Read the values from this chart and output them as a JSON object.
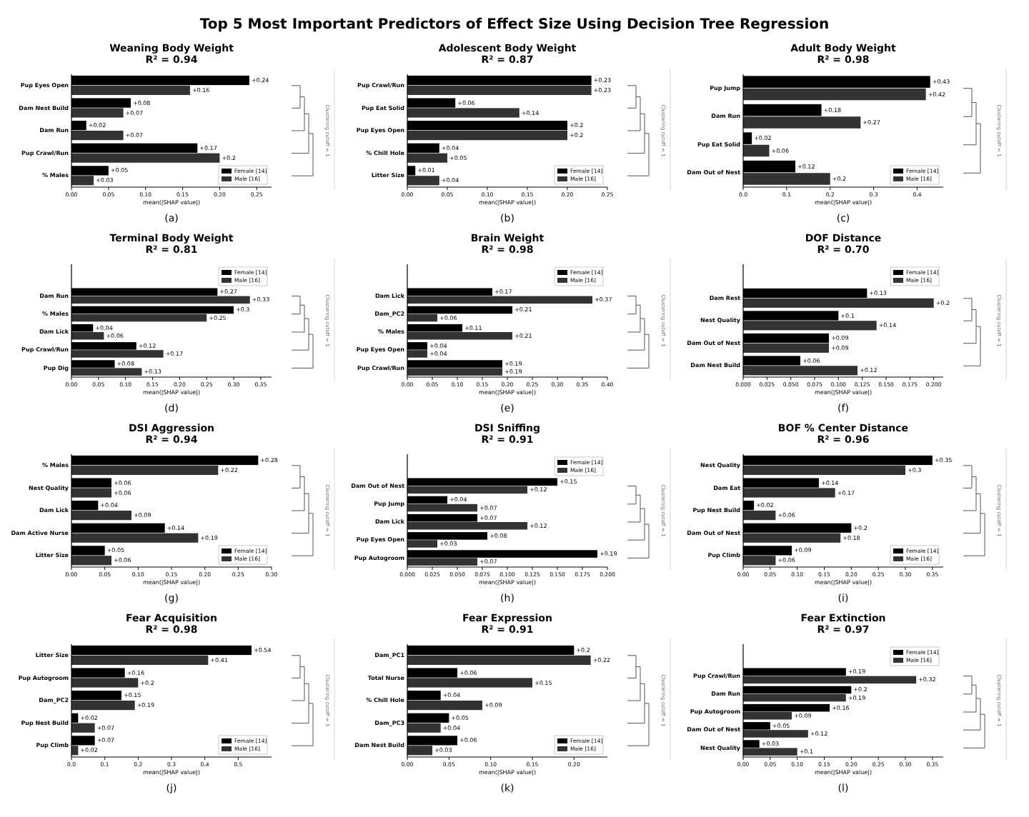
{
  "chart_data": [
    {
      "type": "bar",
      "orientation": "horizontal",
      "title": "Weaning Body Weight",
      "subtitle": "R² = 0.94",
      "xlabel": "mean(|SHAP value|)",
      "categories": [
        "Pup Eyes Open",
        "Dam Nest Build",
        "Dam Run",
        "Pup Crawl/Run",
        "% Males"
      ],
      "series": [
        {
          "name": "Female [14]",
          "color": "#000000",
          "values": [
            0.24,
            0.08,
            0.02,
            0.17,
            0.05
          ],
          "value_labels": [
            "+0.24",
            "+0.08",
            "+0.02",
            "+0.17",
            "+0.05"
          ]
        },
        {
          "name": "Male [16]",
          "color": "#333333",
          "values": [
            0.16,
            0.07,
            0.07,
            0.2,
            0.03
          ],
          "value_labels": [
            "+0.16",
            "+0.07",
            "+0.07",
            "+0.2",
            "+0.03"
          ]
        }
      ],
      "xlim": [
        0,
        0.27
      ],
      "xticks": [
        {
          "value": 0,
          "label": "0.00"
        },
        {
          "value": 0.05,
          "label": "0.05"
        },
        {
          "value": 0.1,
          "label": "0.10"
        },
        {
          "value": 0.15,
          "label": "0.15"
        },
        {
          "value": 0.2,
          "label": "0.20"
        },
        {
          "value": 0.25,
          "label": "0.25"
        }
      ],
      "legend": "bottom right",
      "annotations": [
        "(a)",
        "Clustering cutoff = 1",
        "Top 5 Most Important Predictors of Effect Size Using Decision Tree Regression"
      ]
    },
    {
      "type": "bar",
      "orientation": "horizontal",
      "title": "Adolescent Body Weight",
      "subtitle": "R² = 0.87",
      "xlabel": "mean(|SHAP value|)",
      "categories": [
        "Pup Crawl/Run",
        "Pup Eat Solid",
        "Pup Eyes Open",
        "% Chill Hole",
        "Litter Size"
      ],
      "series": [
        {
          "name": "Female [14]",
          "color": "#000000",
          "values": [
            0.23,
            0.06,
            0.2,
            0.04,
            0.01
          ],
          "value_labels": [
            "+0.23",
            "+0.06",
            "+0.2",
            "+0.04",
            "+0.01"
          ]
        },
        {
          "name": "Male [16]",
          "color": "#333333",
          "values": [
            0.23,
            0.14,
            0.2,
            0.05,
            0.04
          ],
          "value_labels": [
            "+0.23",
            "+0.14",
            "+0.2",
            "+0.05",
            "+0.04"
          ]
        }
      ],
      "xlim": [
        0,
        0.25
      ],
      "xticks": [
        {
          "value": 0,
          "label": "0.00"
        },
        {
          "value": 0.05,
          "label": "0.05"
        },
        {
          "value": 0.1,
          "label": "0.10"
        },
        {
          "value": 0.15,
          "label": "0.15"
        },
        {
          "value": 0.2,
          "label": "0.20"
        },
        {
          "value": 0.25,
          "label": "0.25"
        }
      ],
      "legend": "bottom right",
      "annotations": [
        "(b)",
        "Clustering cutoff = 1"
      ]
    },
    {
      "type": "bar",
      "orientation": "horizontal",
      "title": "Adult Body Weight",
      "subtitle": "R² = 0.98",
      "xlabel": "mean(|SHAP value|)",
      "categories": [
        "Pup Jump",
        "Dam Run",
        "Pup Eat Solid",
        "Dam Out of Nest"
      ],
      "series": [
        {
          "name": "Female [14]",
          "color": "#000000",
          "values": [
            0.43,
            0.18,
            0.02,
            0.12
          ],
          "value_labels": [
            "+0.43",
            "+0.18",
            "+0.02",
            "+0.12"
          ]
        },
        {
          "name": "Male [16]",
          "color": "#333333",
          "values": [
            0.42,
            0.27,
            0.06,
            0.2
          ],
          "value_labels": [
            "+0.42",
            "+0.27",
            "+0.06",
            "+0.2"
          ]
        }
      ],
      "xlim": [
        0,
        0.46
      ],
      "xticks": [
        {
          "value": 0,
          "label": "0.0"
        },
        {
          "value": 0.1,
          "label": "0.1"
        },
        {
          "value": 0.2,
          "label": "0.2"
        },
        {
          "value": 0.3,
          "label": "0.3"
        },
        {
          "value": 0.4,
          "label": "0.4"
        }
      ],
      "legend": "bottom right",
      "annotations": [
        "(c)",
        "Clustering cutoff = 1"
      ]
    },
    {
      "type": "bar",
      "orientation": "horizontal",
      "title": "Terminal Body Weight",
      "subtitle": "R² = 0.81",
      "xlabel": "mean(|SHAP value|)",
      "categories": [
        "Dam Run",
        "% Males",
        "Dam Lick",
        "Pup Crawl/Run",
        "Pup Dig"
      ],
      "series": [
        {
          "name": "Female [14]",
          "color": "#000000",
          "values": [
            0.27,
            0.3,
            0.04,
            0.12,
            0.08
          ],
          "value_labels": [
            "+0.27",
            "+0.3",
            "+0.04",
            "+0.12",
            "+0.08"
          ]
        },
        {
          "name": "Male [16]",
          "color": "#333333",
          "values": [
            0.33,
            0.25,
            0.06,
            0.17,
            0.13
          ],
          "value_labels": [
            "+0.33",
            "+0.25",
            "+0.06",
            "+0.17",
            "+0.13"
          ]
        }
      ],
      "xlim": [
        0,
        0.37
      ],
      "xticks": [
        {
          "value": 0,
          "label": "0.00"
        },
        {
          "value": 0.05,
          "label": "0.05"
        },
        {
          "value": 0.1,
          "label": "0.10"
        },
        {
          "value": 0.15,
          "label": "0.15"
        },
        {
          "value": 0.2,
          "label": "0.20"
        },
        {
          "value": 0.25,
          "label": "0.25"
        },
        {
          "value": 0.3,
          "label": "0.30"
        },
        {
          "value": 0.35,
          "label": "0.35"
        }
      ],
      "legend": "top right",
      "annotations": [
        "(d)",
        "Clustering cutoff = 1"
      ]
    },
    {
      "type": "bar",
      "orientation": "horizontal",
      "title": "Brain Weight",
      "subtitle": "R² = 0.98",
      "xlabel": "mean(|SHAP value|)",
      "categories": [
        "Dam Lick",
        "Dam_PC2",
        "% Males",
        "Pup Eyes Open",
        "Pup Crawl/Run"
      ],
      "series": [
        {
          "name": "Female [14]",
          "color": "#000000",
          "values": [
            0.17,
            0.21,
            0.11,
            0.04,
            0.19
          ],
          "value_labels": [
            "+0.17",
            "+0.21",
            "+0.11",
            "+0.04",
            "+0.19"
          ]
        },
        {
          "name": "Male [16]",
          "color": "#333333",
          "values": [
            0.37,
            0.06,
            0.21,
            0.04,
            0.19
          ],
          "value_labels": [
            "+0.37",
            "+0.06",
            "+0.21",
            "+0.04",
            "+0.19"
          ]
        }
      ],
      "xlim": [
        0,
        0.4
      ],
      "xticks": [
        {
          "value": 0,
          "label": "0.00"
        },
        {
          "value": 0.05,
          "label": "0.05"
        },
        {
          "value": 0.1,
          "label": "0.10"
        },
        {
          "value": 0.15,
          "label": "0.15"
        },
        {
          "value": 0.2,
          "label": "0.20"
        },
        {
          "value": 0.25,
          "label": "0.25"
        },
        {
          "value": 0.3,
          "label": "0.30"
        },
        {
          "value": 0.35,
          "label": "0.35"
        },
        {
          "value": 0.4,
          "label": "0.40"
        }
      ],
      "legend": "top right",
      "annotations": [
        "(e)",
        "Clustering cutoff = 1"
      ]
    },
    {
      "type": "bar",
      "orientation": "horizontal",
      "title": "DOF Distance",
      "subtitle": "R² = 0.70",
      "xlabel": "mean(|SHAP value|)",
      "categories": [
        "Dam Rest",
        "Nest Quality",
        "Dam Out of Nest",
        "Dam Nest Build"
      ],
      "series": [
        {
          "name": "Female [14]",
          "color": "#000000",
          "values": [
            0.13,
            0.1,
            0.09,
            0.06
          ],
          "value_labels": [
            "+0.13",
            "+0.1",
            "+0.09",
            "+0.06"
          ]
        },
        {
          "name": "Male [16]",
          "color": "#333333",
          "values": [
            0.2,
            0.14,
            0.09,
            0.12
          ],
          "value_labels": [
            "+0.2",
            "+0.14",
            "+0.09",
            "+0.12"
          ]
        }
      ],
      "xlim": [
        0,
        0.21
      ],
      "xticks": [
        {
          "value": 0,
          "label": "0.000"
        },
        {
          "value": 0.025,
          "label": "0.025"
        },
        {
          "value": 0.05,
          "label": "0.050"
        },
        {
          "value": 0.075,
          "label": "0.075"
        },
        {
          "value": 0.1,
          "label": "0.100"
        },
        {
          "value": 0.125,
          "label": "0.125"
        },
        {
          "value": 0.15,
          "label": "0.150"
        },
        {
          "value": 0.175,
          "label": "0.175"
        },
        {
          "value": 0.2,
          "label": "0.200"
        }
      ],
      "legend": "top right",
      "annotations": [
        "(f)",
        "Clustering cutoff = 1"
      ]
    },
    {
      "type": "bar",
      "orientation": "horizontal",
      "title": "DSI Aggression",
      "subtitle": "R² = 0.94",
      "xlabel": "mean(|SHAP value|)",
      "categories": [
        "% Males",
        "Nest Quality",
        "Dam Lick",
        "Dam Active Nurse",
        "Litter Size"
      ],
      "series": [
        {
          "name": "Female [14]",
          "color": "#000000",
          "values": [
            0.28,
            0.06,
            0.04,
            0.14,
            0.05
          ],
          "value_labels": [
            "+0.28",
            "+0.06",
            "+0.04",
            "+0.14",
            "+0.05"
          ]
        },
        {
          "name": "Male [16]",
          "color": "#333333",
          "values": [
            0.22,
            0.06,
            0.09,
            0.19,
            0.06
          ],
          "value_labels": [
            "+0.22",
            "+0.06",
            "+0.09",
            "+0.19",
            "+0.06"
          ]
        }
      ],
      "xlim": [
        0,
        0.3
      ],
      "xticks": [
        {
          "value": 0,
          "label": "0.00"
        },
        {
          "value": 0.05,
          "label": "0.05"
        },
        {
          "value": 0.1,
          "label": "0.10"
        },
        {
          "value": 0.15,
          "label": "0.15"
        },
        {
          "value": 0.2,
          "label": "0.20"
        },
        {
          "value": 0.25,
          "label": "0.25"
        },
        {
          "value": 0.3,
          "label": "0.30"
        }
      ],
      "legend": "bottom right",
      "annotations": [
        "(g)",
        "Clustering cutoff = 1"
      ]
    },
    {
      "type": "bar",
      "orientation": "horizontal",
      "title": "DSI Sniffing",
      "subtitle": "R² = 0.91",
      "xlabel": "mean(|SHAP value|)",
      "categories": [
        "Dam Out of Nest",
        "Pup Jump",
        "Dam Lick",
        "Pup Eyes Open",
        "Pup Autogroom"
      ],
      "series": [
        {
          "name": "Female [14]",
          "color": "#000000",
          "values": [
            0.15,
            0.04,
            0.07,
            0.08,
            0.19
          ],
          "value_labels": [
            "+0.15",
            "+0.04",
            "+0.07",
            "+0.08",
            "+0.19"
          ]
        },
        {
          "name": "Male [16]",
          "color": "#333333",
          "values": [
            0.12,
            0.07,
            0.12,
            0.03,
            0.07
          ],
          "value_labels": [
            "+0.12",
            "+0.07",
            "+0.12",
            "+0.03",
            "+0.07"
          ]
        }
      ],
      "xlim": [
        0,
        0.2
      ],
      "xticks": [
        {
          "value": 0,
          "label": "0.000"
        },
        {
          "value": 0.025,
          "label": "0.025"
        },
        {
          "value": 0.05,
          "label": "0.050"
        },
        {
          "value": 0.075,
          "label": "0.075"
        },
        {
          "value": 0.1,
          "label": "0.100"
        },
        {
          "value": 0.125,
          "label": "0.125"
        },
        {
          "value": 0.15,
          "label": "0.150"
        },
        {
          "value": 0.175,
          "label": "0.175"
        },
        {
          "value": 0.2,
          "label": "0.200"
        }
      ],
      "legend": "top right",
      "annotations": [
        "(h)",
        "Clustering cutoff = 1"
      ]
    },
    {
      "type": "bar",
      "orientation": "horizontal",
      "title": "BOF % Center Distance",
      "subtitle": "R² = 0.96",
      "xlabel": "mean(|SHAP value|)",
      "categories": [
        "Nest Quality",
        "Dam Eat",
        "Pup Nest Build",
        "Dam Out of Nest",
        "Pup Climb"
      ],
      "series": [
        {
          "name": "Female [14]",
          "color": "#000000",
          "values": [
            0.35,
            0.14,
            0.02,
            0.2,
            0.09
          ],
          "value_labels": [
            "+0.35",
            "+0.14",
            "+0.02",
            "+0.2",
            "+0.09"
          ]
        },
        {
          "name": "Male [16]",
          "color": "#333333",
          "values": [
            0.3,
            0.17,
            0.06,
            0.18,
            0.06
          ],
          "value_labels": [
            "+0.3",
            "+0.17",
            "+0.06",
            "+0.18",
            "+0.06"
          ]
        }
      ],
      "xlim": [
        0,
        0.37
      ],
      "xticks": [
        {
          "value": 0,
          "label": "0.00"
        },
        {
          "value": 0.05,
          "label": "0.05"
        },
        {
          "value": 0.1,
          "label": "0.10"
        },
        {
          "value": 0.15,
          "label": "0.15"
        },
        {
          "value": 0.2,
          "label": "0.20"
        },
        {
          "value": 0.25,
          "label": "0.25"
        },
        {
          "value": 0.3,
          "label": "0.30"
        },
        {
          "value": 0.35,
          "label": "0.35"
        }
      ],
      "legend": "bottom right",
      "annotations": [
        "(i)",
        "Clustering cutoff = 1"
      ]
    },
    {
      "type": "bar",
      "orientation": "horizontal",
      "title": "Fear Acquisition",
      "subtitle": "R² = 0.98",
      "xlabel": "mean(|SHAP value|)",
      "categories": [
        "Litter Size",
        "Pup Autogroom",
        "Dam_PC2",
        "Pup Nest Build",
        "Pup Climb"
      ],
      "series": [
        {
          "name": "Female [14]",
          "color": "#000000",
          "values": [
            0.54,
            0.16,
            0.15,
            0.02,
            0.07
          ],
          "value_labels": [
            "+0.54",
            "+0.16",
            "+0.15",
            "+0.02",
            "+0.07"
          ]
        },
        {
          "name": "Male [16]",
          "color": "#333333",
          "values": [
            0.41,
            0.2,
            0.19,
            0.07,
            0.02
          ],
          "value_labels": [
            "+0.41",
            "+0.2",
            "+0.19",
            "+0.07",
            "+0.02"
          ]
        }
      ],
      "xlim": [
        0,
        0.6
      ],
      "xticks": [
        {
          "value": 0,
          "label": "0.0"
        },
        {
          "value": 0.1,
          "label": "0.1"
        },
        {
          "value": 0.2,
          "label": "0.2"
        },
        {
          "value": 0.3,
          "label": "0.3"
        },
        {
          "value": 0.4,
          "label": "0.4"
        },
        {
          "value": 0.5,
          "label": "0.5"
        }
      ],
      "legend": "bottom right",
      "annotations": [
        "(j)",
        "Clustering cutoff = 1"
      ]
    },
    {
      "type": "bar",
      "orientation": "horizontal",
      "title": "Fear Expression",
      "subtitle": "R² = 0.91",
      "xlabel": "mean(|SHAP value|)",
      "categories": [
        "Dam_PC1",
        "Total Nurse",
        "% Chill Hole",
        "Dam_PC3",
        "Dam Nest Build"
      ],
      "series": [
        {
          "name": "Female [14]",
          "color": "#000000",
          "values": [
            0.2,
            0.06,
            0.04,
            0.05,
            0.06
          ],
          "value_labels": [
            "+0.2",
            "+0.06",
            "+0.04",
            "+0.05",
            "+0.06"
          ]
        },
        {
          "name": "Male [16]",
          "color": "#333333",
          "values": [
            0.22,
            0.15,
            0.09,
            0.04,
            0.03
          ],
          "value_labels": [
            "+0.22",
            "+0.15",
            "+0.09",
            "+0.04",
            "+0.03"
          ]
        }
      ],
      "xlim": [
        0,
        0.24
      ],
      "xticks": [
        {
          "value": 0,
          "label": "0.00"
        },
        {
          "value": 0.05,
          "label": "0.05"
        },
        {
          "value": 0.1,
          "label": "0.10"
        },
        {
          "value": 0.15,
          "label": "0.15"
        },
        {
          "value": 0.2,
          "label": "0.20"
        }
      ],
      "legend": "bottom right",
      "annotations": [
        "(k)",
        "Clustering cutoff = 1"
      ]
    },
    {
      "type": "bar",
      "orientation": "horizontal",
      "title": "Fear Extinction",
      "subtitle": "R² = 0.97",
      "xlabel": "mean(|SHAP value|)",
      "categories": [
        "Pup Crawl/Run",
        "Dam Run",
        "Pup Autogroom",
        "Dam Out of Nest",
        "Nest Quality"
      ],
      "series": [
        {
          "name": "Female [14]",
          "color": "#000000",
          "values": [
            0.19,
            0.2,
            0.16,
            0.05,
            0.03
          ],
          "value_labels": [
            "+0.19",
            "+0.2",
            "+0.16",
            "+0.05",
            "+0.03"
          ]
        },
        {
          "name": "Male [16]",
          "color": "#333333",
          "values": [
            0.32,
            0.19,
            0.09,
            0.12,
            0.1
          ],
          "value_labels": [
            "+0.32",
            "+0.19",
            "+0.09",
            "+0.12",
            "+0.1"
          ]
        }
      ],
      "xlim": [
        0,
        0.37
      ],
      "xticks": [
        {
          "value": 0,
          "label": "0.00"
        },
        {
          "value": 0.05,
          "label": "0.05"
        },
        {
          "value": 0.1,
          "label": "0.10"
        },
        {
          "value": 0.15,
          "label": "0.15"
        },
        {
          "value": 0.2,
          "label": "0.20"
        },
        {
          "value": 0.25,
          "label": "0.25"
        },
        {
          "value": 0.3,
          "label": "0.30"
        },
        {
          "value": 0.35,
          "label": "0.35"
        }
      ],
      "legend": "top right",
      "annotations": [
        "(l)",
        "Clustering cutoff = 1"
      ]
    }
  ]
}
